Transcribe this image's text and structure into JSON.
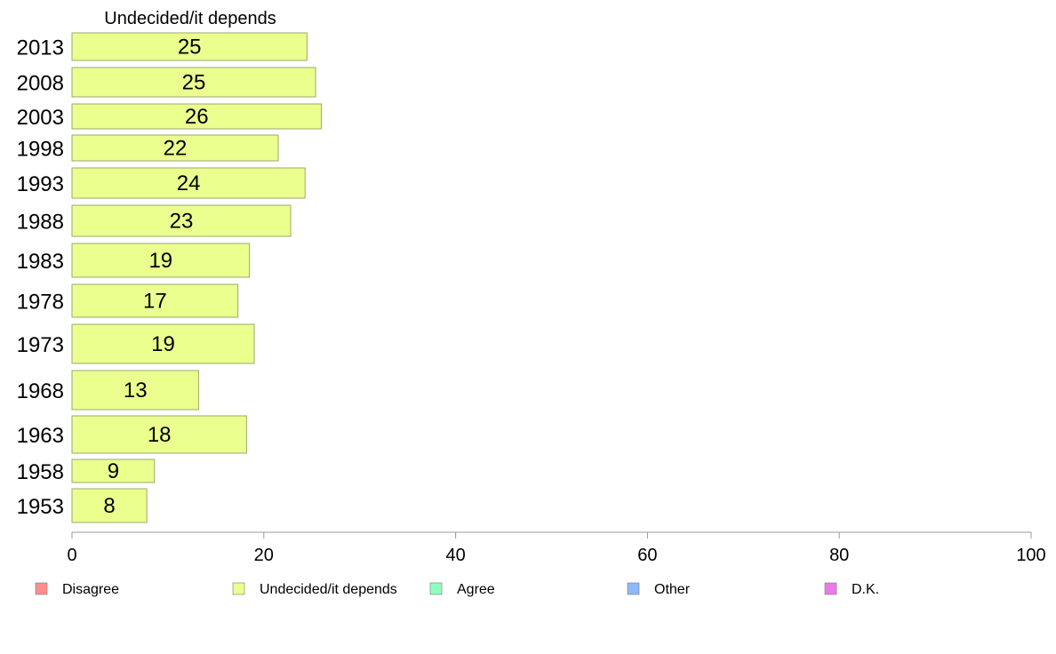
{
  "chart_data": {
    "type": "bar",
    "orientation": "horizontal",
    "title": "Undecided/it depends",
    "categories": [
      "2013",
      "2008",
      "2003",
      "1998",
      "1993",
      "1988",
      "1983",
      "1978",
      "1973",
      "1968",
      "1963",
      "1958",
      "1953"
    ],
    "series": [
      {
        "name": "Undecided/it depends",
        "values": [
          24.5,
          25.4,
          26.0,
          21.5,
          24.3,
          22.8,
          18.5,
          17.3,
          19.0,
          13.2,
          18.2,
          8.6,
          7.8
        ],
        "labels": [
          "25",
          "25",
          "26",
          "22",
          "24",
          "23",
          "19",
          "17",
          "19",
          "13",
          "18",
          "9",
          "8"
        ]
      }
    ],
    "xlim": [
      0,
      100
    ],
    "xticks": [
      "0",
      "20",
      "40",
      "60",
      "80",
      "100"
    ],
    "grid": false,
    "legend_position": "bottom",
    "legend": [
      {
        "label": "Disagree",
        "color": "#ff8f8f"
      },
      {
        "label": "Undecided/it depends",
        "color": "#ebff8f"
      },
      {
        "label": "Agree",
        "color": "#8fffbf"
      },
      {
        "label": "Other",
        "color": "#8fb8ff"
      },
      {
        "label": "D.K.",
        "color": "#eb7aeb"
      }
    ],
    "bar_color": "#ebff8f",
    "bar_border_color": "#9aaa6e"
  }
}
